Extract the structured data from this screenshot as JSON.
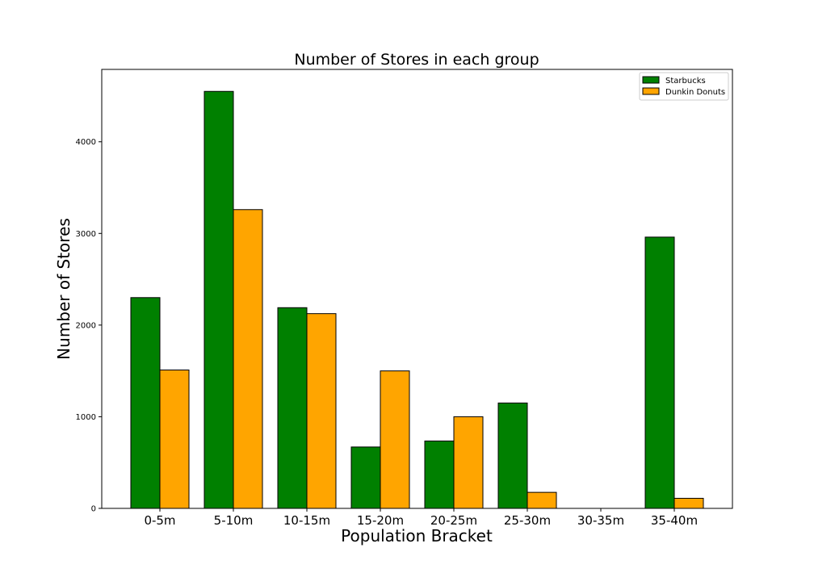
{
  "chart_data": {
    "type": "bar",
    "title": "Number of Stores in each group",
    "xlabel": "Population Bracket",
    "ylabel": "Number of Stores",
    "categories": [
      "0-5m",
      "5-10m",
      "10-15m",
      "15-20m",
      "20-25m",
      "25-30m",
      "30-35m",
      "35-40m"
    ],
    "series": [
      {
        "name": "Starbucks",
        "color": "#008000",
        "values": [
          2300,
          4550,
          2190,
          670,
          735,
          1150,
          0,
          2960
        ]
      },
      {
        "name": "Dunkin Donuts",
        "color": "#ffa500",
        "values": [
          1510,
          3260,
          2125,
          1500,
          1000,
          175,
          0,
          110
        ]
      }
    ],
    "ylim": [
      0,
      4790
    ],
    "yticks": [
      0,
      1000,
      2000,
      3000,
      4000
    ],
    "grid": false,
    "legend_position": "top-right"
  }
}
